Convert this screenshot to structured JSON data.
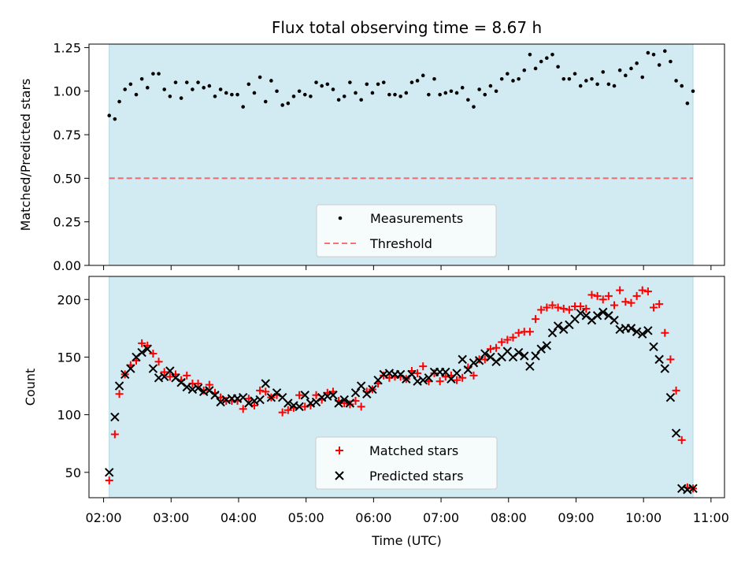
{
  "title": "Flux total observing time = 8.67 h",
  "xlabel": "Time (UTC)",
  "colors": {
    "observing_band": "#add8e6",
    "threshold": "#ff0000",
    "matched": "#ff0000",
    "predicted": "#000000",
    "measurement": "#000000"
  },
  "x_ticks": [
    "02:00",
    "03:00",
    "04:00",
    "05:00",
    "06:00",
    "07:00",
    "08:00",
    "09:00",
    "10:00",
    "11:00"
  ],
  "chart_data": [
    {
      "type": "scatter",
      "ylabel": "Matched/Predicted stars",
      "ylim": [
        0,
        1.27
      ],
      "xlim": [
        "01:47",
        "11:12"
      ],
      "y_ticks": [
        "0.00",
        "0.25",
        "0.50",
        "0.75",
        "1.00",
        "1.25"
      ],
      "y_tick_values": [
        0,
        0.25,
        0.5,
        0.75,
        1.0,
        1.25
      ],
      "observing_window": [
        "02:05",
        "10:44"
      ],
      "threshold": 0.5,
      "legend": {
        "placement": "lower center",
        "entries": [
          "Measurements",
          "Threshold"
        ]
      },
      "series": [
        {
          "name": "Measurements",
          "x": [
            "02:05",
            "02:10",
            "02:14",
            "02:19",
            "02:24",
            "02:29",
            "02:34",
            "02:39",
            "02:44",
            "02:49",
            "02:54",
            "02:59",
            "03:04",
            "03:09",
            "03:14",
            "03:19",
            "03:24",
            "03:29",
            "03:34",
            "03:39",
            "03:44",
            "03:49",
            "03:54",
            "03:59",
            "04:04",
            "04:09",
            "04:14",
            "04:19",
            "04:24",
            "04:29",
            "04:34",
            "04:39",
            "04:44",
            "04:49",
            "04:54",
            "04:59",
            "05:04",
            "05:09",
            "05:14",
            "05:19",
            "05:24",
            "05:29",
            "05:34",
            "05:39",
            "05:44",
            "05:49",
            "05:54",
            "05:59",
            "06:04",
            "06:09",
            "06:14",
            "06:19",
            "06:24",
            "06:29",
            "06:34",
            "06:39",
            "06:44",
            "06:49",
            "06:54",
            "06:59",
            "07:04",
            "07:09",
            "07:14",
            "07:19",
            "07:24",
            "07:29",
            "07:34",
            "07:39",
            "07:44",
            "07:49",
            "07:54",
            "07:59",
            "08:04",
            "08:09",
            "08:14",
            "08:19",
            "08:24",
            "08:29",
            "08:34",
            "08:39",
            "08:44",
            "08:49",
            "08:54",
            "08:59",
            "09:04",
            "09:09",
            "09:14",
            "09:19",
            "09:24",
            "09:29",
            "09:34",
            "09:39",
            "09:44",
            "09:49",
            "09:54",
            "09:59",
            "10:04",
            "10:09",
            "10:14",
            "10:19",
            "10:24",
            "10:29",
            "10:34",
            "10:39",
            "10:44"
          ],
          "y": [
            0.86,
            0.84,
            0.94,
            1.01,
            1.04,
            0.98,
            1.07,
            1.02,
            1.1,
            1.1,
            1.01,
            0.97,
            1.05,
            0.96,
            1.05,
            1.01,
            1.05,
            1.02,
            1.03,
            0.97,
            1.01,
            0.99,
            0.98,
            0.98,
            0.91,
            1.04,
            0.99,
            1.08,
            0.94,
            1.06,
            1.0,
            0.92,
            0.93,
            0.97,
            1.0,
            0.98,
            0.97,
            1.05,
            1.03,
            1.04,
            1.01,
            0.95,
            0.97,
            1.05,
            0.99,
            0.95,
            1.04,
            0.99,
            1.04,
            1.05,
            0.98,
            0.98,
            0.97,
            0.99,
            1.05,
            1.06,
            1.09,
            0.98,
            1.07,
            0.98,
            0.99,
            1.0,
            0.99,
            1.02,
            0.95,
            0.91,
            1.01,
            0.98,
            1.03,
            1.0,
            1.07,
            1.1,
            1.06,
            1.07,
            1.12,
            1.21,
            1.13,
            1.17,
            1.19,
            1.21,
            1.14,
            1.07,
            1.07,
            1.1,
            1.03,
            1.06,
            1.07,
            1.04,
            1.11,
            1.04,
            1.03,
            1.12,
            1.09,
            1.13,
            1.16,
            1.08,
            1.22,
            1.21,
            1.15,
            1.23,
            1.17,
            1.06,
            1.03,
            0.93,
            1.0
          ]
        }
      ]
    },
    {
      "type": "scatter",
      "ylabel": "Count",
      "ylim": [
        28,
        220
      ],
      "xlim": [
        "01:47",
        "11:12"
      ],
      "y_ticks": [
        "50",
        "100",
        "150",
        "200"
      ],
      "y_tick_values": [
        50,
        100,
        150,
        200
      ],
      "observing_window": [
        "02:05",
        "10:44"
      ],
      "legend": {
        "placement": "lower center",
        "entries": [
          "Matched stars",
          "Predicted stars"
        ]
      },
      "series": [
        {
          "name": "Matched stars",
          "x": [
            "02:05",
            "02:10",
            "02:14",
            "02:19",
            "02:24",
            "02:29",
            "02:34",
            "02:39",
            "02:44",
            "02:49",
            "02:54",
            "02:59",
            "03:04",
            "03:09",
            "03:14",
            "03:19",
            "03:24",
            "03:29",
            "03:34",
            "03:39",
            "03:44",
            "03:49",
            "03:54",
            "03:59",
            "04:04",
            "04:09",
            "04:14",
            "04:19",
            "04:24",
            "04:29",
            "04:34",
            "04:39",
            "04:44",
            "04:49",
            "04:54",
            "04:59",
            "05:04",
            "05:09",
            "05:14",
            "05:19",
            "05:24",
            "05:29",
            "05:34",
            "05:39",
            "05:44",
            "05:49",
            "05:54",
            "05:59",
            "06:04",
            "06:09",
            "06:14",
            "06:19",
            "06:24",
            "06:29",
            "06:34",
            "06:39",
            "06:44",
            "06:49",
            "06:54",
            "06:59",
            "07:04",
            "07:09",
            "07:14",
            "07:19",
            "07:24",
            "07:29",
            "07:34",
            "07:39",
            "07:44",
            "07:49",
            "07:54",
            "07:59",
            "08:04",
            "08:09",
            "08:14",
            "08:19",
            "08:24",
            "08:29",
            "08:34",
            "08:39",
            "08:44",
            "08:49",
            "08:54",
            "08:59",
            "09:04",
            "09:09",
            "09:14",
            "09:19",
            "09:24",
            "09:29",
            "09:34",
            "09:39",
            "09:44",
            "09:49",
            "09:54",
            "09:59",
            "10:04",
            "10:09",
            "10:14",
            "10:19",
            "10:24",
            "10:29",
            "10:34",
            "10:39",
            "10:44"
          ],
          "y": [
            43,
            83,
            118,
            135,
            143,
            147,
            162,
            160,
            153,
            146,
            137,
            133,
            135,
            130,
            134,
            127,
            127,
            121,
            126,
            119,
            115,
            112,
            112,
            112,
            105,
            114,
            108,
            121,
            120,
            115,
            117,
            102,
            104,
            106,
            117,
            107,
            108,
            117,
            113,
            119,
            120,
            112,
            110,
            109,
            112,
            107,
            120,
            122,
            127,
            134,
            132,
            133,
            133,
            131,
            138,
            136,
            142,
            129,
            136,
            129,
            133,
            134,
            130,
            132,
            141,
            134,
            148,
            148,
            157,
            158,
            163,
            165,
            167,
            171,
            172,
            172,
            183,
            191,
            193,
            195,
            193,
            192,
            191,
            194,
            194,
            192,
            204,
            203,
            200,
            203,
            195,
            208,
            198,
            197,
            203,
            208,
            207,
            193,
            196,
            171,
            148,
            121,
            78,
            37,
            36
          ]
        },
        {
          "name": "Predicted stars",
          "x": [
            "02:05",
            "02:10",
            "02:14",
            "02:19",
            "02:24",
            "02:29",
            "02:34",
            "02:39",
            "02:44",
            "02:49",
            "02:54",
            "02:59",
            "03:04",
            "03:09",
            "03:14",
            "03:19",
            "03:24",
            "03:29",
            "03:34",
            "03:39",
            "03:44",
            "03:49",
            "03:54",
            "03:59",
            "04:04",
            "04:09",
            "04:14",
            "04:19",
            "04:24",
            "04:29",
            "04:34",
            "04:39",
            "04:44",
            "04:49",
            "04:54",
            "04:59",
            "05:04",
            "05:09",
            "05:14",
            "05:19",
            "05:24",
            "05:29",
            "05:34",
            "05:39",
            "05:44",
            "05:49",
            "05:54",
            "05:59",
            "06:04",
            "06:09",
            "06:14",
            "06:19",
            "06:24",
            "06:29",
            "06:34",
            "06:39",
            "06:44",
            "06:49",
            "06:54",
            "06:59",
            "07:04",
            "07:09",
            "07:14",
            "07:19",
            "07:24",
            "07:29",
            "07:34",
            "07:39",
            "07:44",
            "07:49",
            "07:54",
            "07:59",
            "08:04",
            "08:09",
            "08:14",
            "08:19",
            "08:24",
            "08:29",
            "08:34",
            "08:39",
            "08:44",
            "08:49",
            "08:54",
            "08:59",
            "09:04",
            "09:09",
            "09:14",
            "09:19",
            "09:24",
            "09:29",
            "09:34",
            "09:39",
            "09:44",
            "09:49",
            "09:54",
            "09:59",
            "10:04",
            "10:09",
            "10:14",
            "10:19",
            "10:24",
            "10:29",
            "10:34",
            "10:39",
            "10:44"
          ],
          "y": [
            50,
            98,
            125,
            135,
            140,
            150,
            154,
            157,
            140,
            132,
            133,
            138,
            132,
            128,
            124,
            122,
            123,
            120,
            121,
            117,
            111,
            113,
            114,
            114,
            115,
            110,
            112,
            113,
            127,
            115,
            119,
            115,
            110,
            108,
            107,
            117,
            110,
            111,
            115,
            116,
            117,
            110,
            113,
            110,
            119,
            125,
            118,
            122,
            130,
            135,
            136,
            135,
            135,
            131,
            135,
            129,
            130,
            132,
            137,
            137,
            137,
            131,
            136,
            148,
            139,
            145,
            147,
            153,
            150,
            146,
            150,
            155,
            150,
            154,
            151,
            142,
            151,
            157,
            160,
            171,
            177,
            174,
            178,
            183,
            188,
            186,
            182,
            186,
            189,
            186,
            182,
            174,
            175,
            175,
            172,
            170,
            173,
            159,
            148,
            140,
            115,
            84,
            36,
            35,
            36
          ]
        }
      ]
    }
  ]
}
